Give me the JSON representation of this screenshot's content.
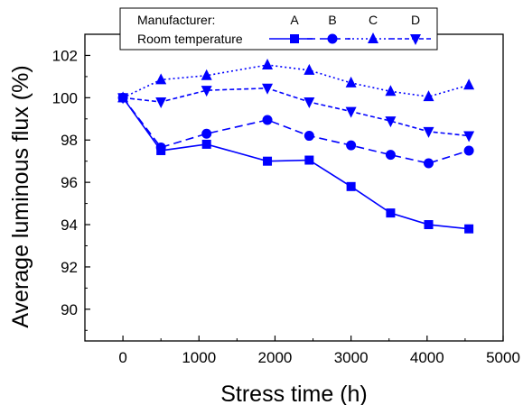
{
  "chart_data": {
    "type": "line",
    "xlabel": "Stress time (h)",
    "ylabel": "Average luminous flux (%)",
    "xlim": [
      -500,
      5000
    ],
    "ylim": [
      88.5,
      103
    ],
    "xticks": [
      0,
      1000,
      2000,
      3000,
      4000,
      5000
    ],
    "yticks": [
      90,
      92,
      94,
      96,
      98,
      100,
      102
    ],
    "xtick_labels": [
      "0",
      "1000",
      "2000",
      "3000",
      "4000",
      "5000"
    ],
    "ytick_labels": [
      "90",
      "92",
      "94",
      "96",
      "98",
      "100",
      "102"
    ],
    "grid": false,
    "legend": {
      "placement": "top-center",
      "title": "Manufacturer:",
      "row_label": "Room temperature",
      "entries": [
        "A",
        "B",
        "C",
        "D"
      ]
    },
    "color": "#0000ff",
    "series": [
      {
        "name": "A",
        "marker": "square",
        "linestyle": "solid",
        "x": [
          0,
          500,
          1100,
          1900,
          2450,
          3000,
          3520,
          4020,
          4550
        ],
        "y": [
          100.0,
          97.5,
          97.8,
          97.0,
          97.05,
          95.8,
          94.55,
          94.0,
          93.8
        ]
      },
      {
        "name": "B",
        "marker": "circle",
        "linestyle": "dashed",
        "x": [
          0,
          500,
          1100,
          1900,
          2450,
          3000,
          3520,
          4020,
          4550
        ],
        "y": [
          100.0,
          97.65,
          98.3,
          98.95,
          98.2,
          97.75,
          97.3,
          96.9,
          97.5
        ]
      },
      {
        "name": "C",
        "marker": "triangle-up",
        "linestyle": "dotted",
        "x": [
          0,
          500,
          1100,
          1900,
          2450,
          3000,
          3520,
          4020,
          4550
        ],
        "y": [
          100.0,
          100.85,
          101.05,
          101.55,
          101.3,
          100.7,
          100.3,
          100.05,
          100.6
        ]
      },
      {
        "name": "D",
        "marker": "triangle-down",
        "linestyle": "short-dashed",
        "x": [
          0,
          500,
          1100,
          1900,
          2450,
          3000,
          3520,
          4020,
          4550
        ],
        "y": [
          100.0,
          99.8,
          100.35,
          100.45,
          99.8,
          99.35,
          98.9,
          98.4,
          98.2
        ]
      }
    ]
  }
}
